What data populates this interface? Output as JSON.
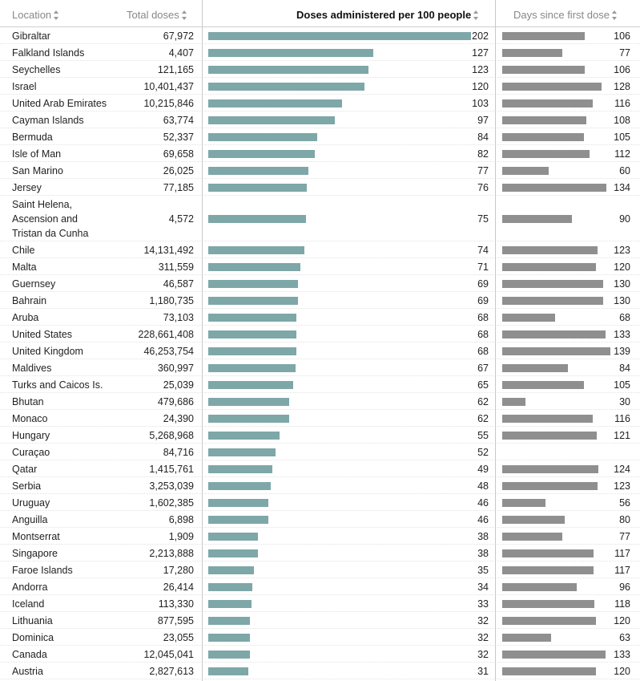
{
  "headers": {
    "location": "Location",
    "total_doses": "Total doses",
    "per100": "Doses administered per 100 people",
    "days": "Days since first dose"
  },
  "chart_data": {
    "type": "table",
    "title": "",
    "columns": [
      "Location",
      "Total doses",
      "Doses administered per 100 people",
      "Days since first dose"
    ],
    "per100_max": 202,
    "days_max": 139,
    "rows": [
      {
        "location": "Gibraltar",
        "total": "67,972",
        "per100": 202,
        "days": 106
      },
      {
        "location": "Falkland Islands",
        "total": "4,407",
        "per100": 127,
        "days": 77
      },
      {
        "location": "Seychelles",
        "total": "121,165",
        "per100": 123,
        "days": 106
      },
      {
        "location": "Israel",
        "total": "10,401,437",
        "per100": 120,
        "days": 128
      },
      {
        "location": "United Arab Emirates",
        "total": "10,215,846",
        "per100": 103,
        "days": 116
      },
      {
        "location": "Cayman Islands",
        "total": "63,774",
        "per100": 97,
        "days": 108
      },
      {
        "location": "Bermuda",
        "total": "52,337",
        "per100": 84,
        "days": 105
      },
      {
        "location": "Isle of Man",
        "total": "69,658",
        "per100": 82,
        "days": 112
      },
      {
        "location": "San Marino",
        "total": "26,025",
        "per100": 77,
        "days": 60
      },
      {
        "location": "Jersey",
        "total": "77,185",
        "per100": 76,
        "days": 134
      },
      {
        "location": "Saint Helena, Ascension and Tristan da Cunha",
        "total": "4,572",
        "per100": 75,
        "days": 90
      },
      {
        "location": "Chile",
        "total": "14,131,492",
        "per100": 74,
        "days": 123
      },
      {
        "location": "Malta",
        "total": "311,559",
        "per100": 71,
        "days": 120
      },
      {
        "location": "Guernsey",
        "total": "46,587",
        "per100": 69,
        "days": 130
      },
      {
        "location": "Bahrain",
        "total": "1,180,735",
        "per100": 69,
        "days": 130
      },
      {
        "location": "Aruba",
        "total": "73,103",
        "per100": 68,
        "days": 68
      },
      {
        "location": "United States",
        "total": "228,661,408",
        "per100": 68,
        "days": 133
      },
      {
        "location": "United Kingdom",
        "total": "46,253,754",
        "per100": 68,
        "days": 139
      },
      {
        "location": "Maldives",
        "total": "360,997",
        "per100": 67,
        "days": 84
      },
      {
        "location": "Turks and Caicos Is.",
        "total": "25,039",
        "per100": 65,
        "days": 105
      },
      {
        "location": "Bhutan",
        "total": "479,686",
        "per100": 62,
        "days": 30
      },
      {
        "location": "Monaco",
        "total": "24,390",
        "per100": 62,
        "days": 116
      },
      {
        "location": "Hungary",
        "total": "5,268,968",
        "per100": 55,
        "days": 121
      },
      {
        "location": "Curaçao",
        "total": "84,716",
        "per100": 52,
        "days": null
      },
      {
        "location": "Qatar",
        "total": "1,415,761",
        "per100": 49,
        "days": 124
      },
      {
        "location": "Serbia",
        "total": "3,253,039",
        "per100": 48,
        "days": 123
      },
      {
        "location": "Uruguay",
        "total": "1,602,385",
        "per100": 46,
        "days": 56
      },
      {
        "location": "Anguilla",
        "total": "6,898",
        "per100": 46,
        "days": 80
      },
      {
        "location": "Montserrat",
        "total": "1,909",
        "per100": 38,
        "days": 77
      },
      {
        "location": "Singapore",
        "total": "2,213,888",
        "per100": 38,
        "days": 117
      },
      {
        "location": "Faroe Islands",
        "total": "17,280",
        "per100": 35,
        "days": 117
      },
      {
        "location": "Andorra",
        "total": "26,414",
        "per100": 34,
        "days": 96
      },
      {
        "location": "Iceland",
        "total": "113,330",
        "per100": 33,
        "days": 118
      },
      {
        "location": "Lithuania",
        "total": "877,595",
        "per100": 32,
        "days": 120
      },
      {
        "location": "Dominica",
        "total": "23,055",
        "per100": 32,
        "days": 63
      },
      {
        "location": "Canada",
        "total": "12,045,041",
        "per100": 32,
        "days": 133
      },
      {
        "location": "Austria",
        "total": "2,827,613",
        "per100": 31,
        "days": 120
      }
    ]
  },
  "colors": {
    "per100_bar": "#7ea7a8",
    "days_bar": "#8f8f8f"
  }
}
